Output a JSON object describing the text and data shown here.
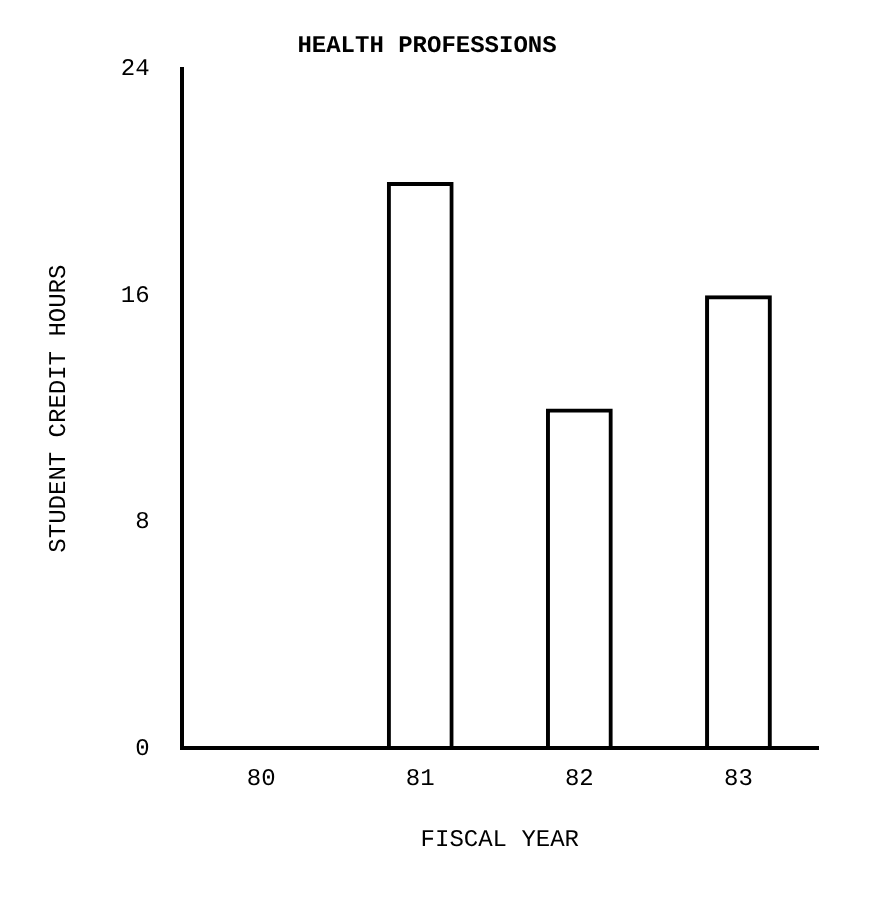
{
  "chart_data": {
    "type": "bar",
    "title": "HEALTH PROFESSIONS",
    "xlabel": "FISCAL YEAR",
    "ylabel": "STUDENT CREDIT HOURS",
    "categories": [
      "80",
      "81",
      "82",
      "83"
    ],
    "values": [
      0,
      20,
      12,
      16
    ],
    "color": "#000000",
    "ylim": [
      0,
      24
    ],
    "yticks": [
      0,
      8,
      16,
      24
    ],
    "grid": false,
    "legend": false
  }
}
